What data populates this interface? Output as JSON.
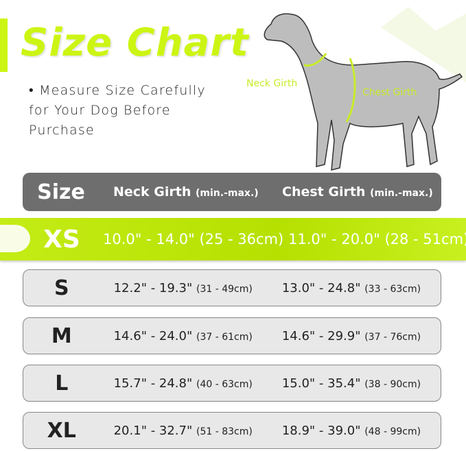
{
  "title": "Size Chart",
  "note": "• Measure Size Carefully for Your Dog Before Purchase",
  "diagram": {
    "neck_label": "Neck Girth",
    "chest_label": "Chest Girth"
  },
  "colors": {
    "accent": "#ccf514",
    "header": "#6e6e6e",
    "row": "#e8e8e8"
  },
  "table": {
    "header": {
      "size": "Size",
      "neck": "Neck Girth",
      "neck_unit": "(min.-max.)",
      "chest": "Chest Girth",
      "chest_unit": "(min.-max.)"
    },
    "rows": [
      {
        "size": "XS",
        "neck": "10.0\" - 14.0\"",
        "neck_cm": "(25 - 36cm)",
        "chest": "11.0\" - 20.0\"",
        "chest_cm": "(28 - 51cm)",
        "highlighted": true
      },
      {
        "size": "S",
        "neck": "12.2\" - 19.3\"",
        "neck_cm": "(31 - 49cm)",
        "chest": "13.0\" - 24.8\"",
        "chest_cm": "(33 - 63cm)"
      },
      {
        "size": "M",
        "neck": "14.6\" - 24.0\"",
        "neck_cm": "(37 - 61cm)",
        "chest": "14.6\" - 29.9\"",
        "chest_cm": "(37 - 76cm)"
      },
      {
        "size": "L",
        "neck": "15.7\" - 24.8\"",
        "neck_cm": "(40 - 63cm)",
        "chest": "15.0\" - 35.4\"",
        "chest_cm": "(38 - 90cm)"
      },
      {
        "size": "XL",
        "neck": "20.1\" - 32.7\"",
        "neck_cm": "(51 - 83cm)",
        "chest": "18.9\" - 39.0\"",
        "chest_cm": "(48 - 99cm)"
      }
    ]
  }
}
